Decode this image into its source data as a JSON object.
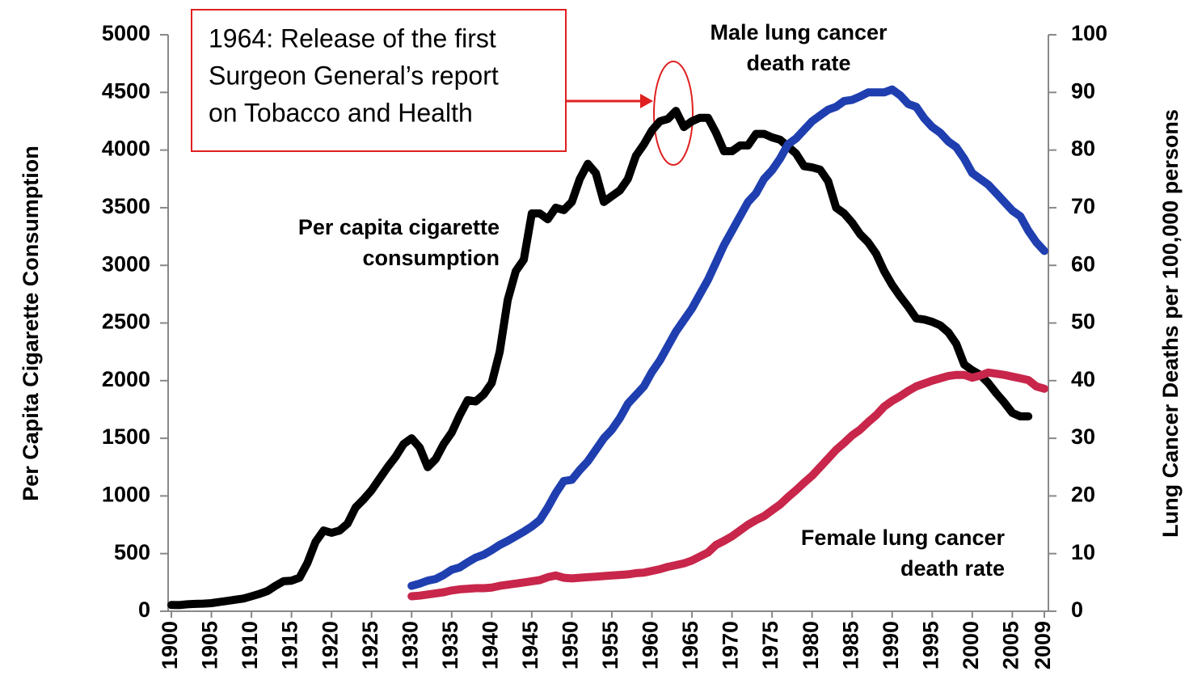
{
  "chart_data": {
    "type": "line",
    "y_label": "Per Capita Cigarette Consumption",
    "y2_label": "Lung Cancer Deaths per 100,000 persons",
    "annotations": [
      {
        "lines": [
          "1964: Release of the first",
          "Surgeon General’s report",
          "on Tobacco and Health"
        ]
      },
      {
        "lines": [
          "Per capita cigarette",
          "consumption"
        ]
      },
      {
        "lines": [
          "Male lung cancer",
          "death rate"
        ]
      },
      {
        "lines": [
          "Female lung cancer",
          "death rate"
        ]
      }
    ],
    "x": [
      1900,
      1901,
      1902,
      1903,
      1904,
      1905,
      1906,
      1907,
      1908,
      1909,
      1910,
      1911,
      1912,
      1913,
      1914,
      1915,
      1916,
      1917,
      1918,
      1919,
      1920,
      1921,
      1922,
      1923,
      1924,
      1925,
      1926,
      1927,
      1928,
      1929,
      1930,
      1931,
      1932,
      1933,
      1934,
      1935,
      1936,
      1937,
      1938,
      1939,
      1940,
      1941,
      1942,
      1943,
      1944,
      1945,
      1946,
      1947,
      1948,
      1949,
      1950,
      1951,
      1952,
      1953,
      1954,
      1955,
      1956,
      1957,
      1958,
      1959,
      1960,
      1961,
      1962,
      1963,
      1964,
      1965,
      1966,
      1967,
      1968,
      1969,
      1970,
      1971,
      1972,
      1973,
      1974,
      1975,
      1976,
      1977,
      1978,
      1979,
      1980,
      1981,
      1982,
      1983,
      1984,
      1985,
      1986,
      1987,
      1988,
      1989,
      1990,
      1991,
      1992,
      1993,
      1994,
      1995,
      1996,
      1997,
      1998,
      1999,
      2000,
      2001,
      2002,
      2003,
      2004,
      2005,
      2006,
      2007,
      2008,
      2009
    ],
    "series": [
      {
        "name": "Per capita cigarette consumption",
        "color": "#000000",
        "axis": "y",
        "values": [
          54,
          53,
          60,
          64,
          66,
          70,
          80,
          90,
          100,
          110,
          130,
          150,
          175,
          220,
          260,
          265,
          290,
          420,
          600,
          700,
          680,
          700,
          760,
          900,
          970,
          1050,
          1150,
          1250,
          1340,
          1450,
          1500,
          1420,
          1250,
          1320,
          1450,
          1550,
          1700,
          1830,
          1820,
          1880,
          1980,
          2250,
          2700,
          2950,
          3050,
          3450,
          3450,
          3400,
          3500,
          3480,
          3550,
          3750,
          3880,
          3800,
          3550,
          3600,
          3650,
          3750,
          3950,
          4050,
          4170,
          4250,
          4270,
          4340,
          4200,
          4250,
          4280,
          4280,
          4150,
          3990,
          3990,
          4040,
          4040,
          4140,
          4140,
          4110,
          4090,
          4030,
          3970,
          3860,
          3850,
          3830,
          3730,
          3500,
          3450,
          3370,
          3270,
          3200,
          3100,
          2950,
          2830,
          2730,
          2640,
          2540,
          2530,
          2510,
          2480,
          2420,
          2320,
          2140,
          2090,
          2050,
          1980,
          1890,
          1810,
          1720,
          1690,
          1690,
          null,
          null
        ]
      },
      {
        "name": "Male lung cancer death rate",
        "color": "#1f3fb0",
        "axis": "y2",
        "values": [
          null,
          null,
          null,
          null,
          null,
          null,
          null,
          null,
          null,
          null,
          null,
          null,
          null,
          null,
          null,
          null,
          null,
          null,
          null,
          null,
          null,
          null,
          null,
          null,
          null,
          null,
          null,
          null,
          null,
          null,
          4.4,
          4.8,
          5.3,
          5.6,
          6.3,
          7.2,
          7.6,
          8.5,
          9.3,
          9.8,
          10.6,
          11.5,
          12.2,
          13,
          13.8,
          14.7,
          15.8,
          18,
          20.5,
          22.6,
          22.8,
          24.5,
          26,
          28,
          30,
          31.5,
          33.5,
          36,
          37.5,
          39,
          41.5,
          43.5,
          46,
          48.5,
          50.5,
          52.5,
          55,
          57.5,
          60.5,
          63.5,
          66,
          68.5,
          71,
          72.5,
          75,
          76.5,
          78.5,
          81,
          82,
          83.5,
          85,
          86,
          87,
          87.5,
          88.5,
          88.7,
          89.3,
          90,
          90,
          90,
          90.5,
          89.5,
          88,
          87.5,
          85.5,
          84,
          83,
          81.5,
          80.5,
          78.5,
          76,
          75,
          74,
          72.5,
          71,
          69.5,
          68.5,
          66,
          64,
          62.5
        ]
      },
      {
        "name": "Female lung cancer death rate",
        "color": "#c8264a",
        "axis": "y2",
        "values": [
          null,
          null,
          null,
          null,
          null,
          null,
          null,
          null,
          null,
          null,
          null,
          null,
          null,
          null,
          null,
          null,
          null,
          null,
          null,
          null,
          null,
          null,
          null,
          null,
          null,
          null,
          null,
          null,
          null,
          null,
          2.6,
          2.7,
          2.9,
          3.1,
          3.3,
          3.6,
          3.8,
          3.9,
          4.0,
          4.0,
          4.1,
          4.4,
          4.6,
          4.8,
          5.0,
          5.2,
          5.4,
          5.9,
          6.2,
          5.8,
          5.7,
          5.8,
          5.9,
          6.0,
          6.1,
          6.2,
          6.3,
          6.4,
          6.6,
          6.7,
          7.0,
          7.3,
          7.7,
          8.0,
          8.3,
          8.8,
          9.5,
          10.2,
          11.5,
          12.2,
          13.0,
          14.0,
          15.0,
          15.8,
          16.5,
          17.5,
          18.5,
          19.8,
          21.0,
          22.3,
          23.5,
          25,
          26.5,
          28,
          29.2,
          30.5,
          31.5,
          32.8,
          34,
          35.5,
          36.5,
          37.3,
          38.2,
          39,
          39.5,
          40,
          40.4,
          40.8,
          41,
          41,
          40.5,
          40.9,
          41.4,
          41.2,
          41,
          40.7,
          40.4,
          40.1,
          39,
          38.6
        ]
      }
    ],
    "xlim": [
      1900,
      2009
    ],
    "xticks": [
      1900,
      1905,
      1910,
      1915,
      1920,
      1925,
      1930,
      1935,
      1940,
      1945,
      1950,
      1955,
      1960,
      1965,
      1970,
      1975,
      1980,
      1985,
      1990,
      1995,
      2000,
      2005,
      2009
    ],
    "ylim": [
      0,
      5000
    ],
    "yticks": [
      0,
      500,
      1000,
      1500,
      2000,
      2500,
      3000,
      3500,
      4000,
      4500,
      5000
    ],
    "y2lim": [
      0,
      100
    ],
    "y2ticks": [
      0,
      10,
      20,
      30,
      40,
      50,
      60,
      70,
      80,
      90,
      100
    ],
    "grid": false
  }
}
